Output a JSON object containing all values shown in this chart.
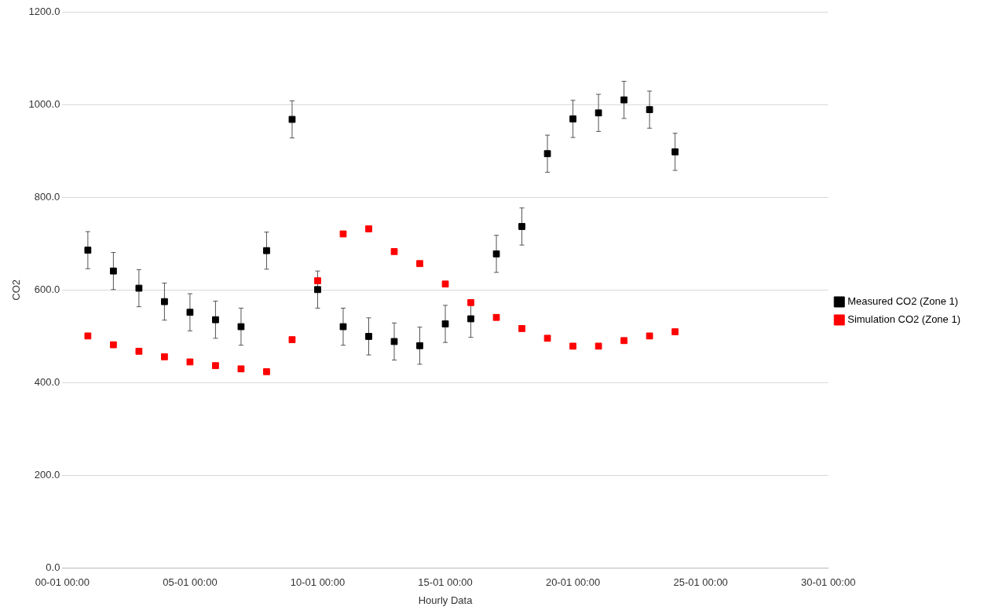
{
  "chart_data": {
    "type": "scatter",
    "xlabel": "Hourly Data",
    "ylabel": "CO2",
    "categories": [
      "00-01 00:00",
      null,
      null,
      null,
      null,
      "05-01 00:00",
      null,
      null,
      null,
      null,
      "10-01 00:00",
      null,
      null,
      null,
      null,
      "15-01 00:00",
      null,
      null,
      null,
      null,
      "20-01 00:00",
      null,
      null,
      null,
      null,
      "25-01 00:00",
      null,
      null,
      null,
      null,
      "30-01 00:00"
    ],
    "series": [
      {
        "name": "Measured CO2 (Zone 1)",
        "color": "#000000",
        "values": [
          null,
          686,
          641,
          604,
          575,
          552,
          536,
          521,
          685,
          968,
          601,
          521,
          500,
          489,
          480,
          527,
          538,
          678,
          737,
          894,
          969,
          982,
          1010,
          989,
          898,
          null,
          null,
          null,
          null,
          null,
          null
        ],
        "errors": [
          null,
          40,
          40,
          40,
          40,
          40,
          40,
          40,
          40,
          40,
          40,
          40,
          40,
          40,
          40,
          40,
          40,
          40,
          40,
          40,
          40,
          40,
          40,
          40,
          40,
          null,
          null,
          null,
          null,
          null,
          null
        ]
      },
      {
        "name": "Simulation CO2 (Zone 1)",
        "color": "#ff0000",
        "values": [
          null,
          501,
          482,
          468,
          456,
          445,
          437,
          430,
          424,
          493,
          620,
          721,
          732,
          683,
          657,
          613,
          573,
          541,
          517,
          496,
          479,
          479,
          491,
          501,
          510,
          null,
          null,
          null,
          null,
          null,
          null
        ]
      }
    ],
    "ylim": [
      0,
      1200
    ],
    "yticks": [
      {
        "value": 0,
        "label": "0.0"
      },
      {
        "value": 200,
        "label": "200.0"
      },
      {
        "value": 400,
        "label": "400.0"
      },
      {
        "value": 600,
        "label": "600.0"
      },
      {
        "value": 800,
        "label": "800.0"
      },
      {
        "value": 1000,
        "label": "1000.0"
      },
      {
        "value": 1200,
        "label": "1200.0"
      }
    ],
    "grid": "y",
    "legend": "right",
    "marker": "square"
  }
}
